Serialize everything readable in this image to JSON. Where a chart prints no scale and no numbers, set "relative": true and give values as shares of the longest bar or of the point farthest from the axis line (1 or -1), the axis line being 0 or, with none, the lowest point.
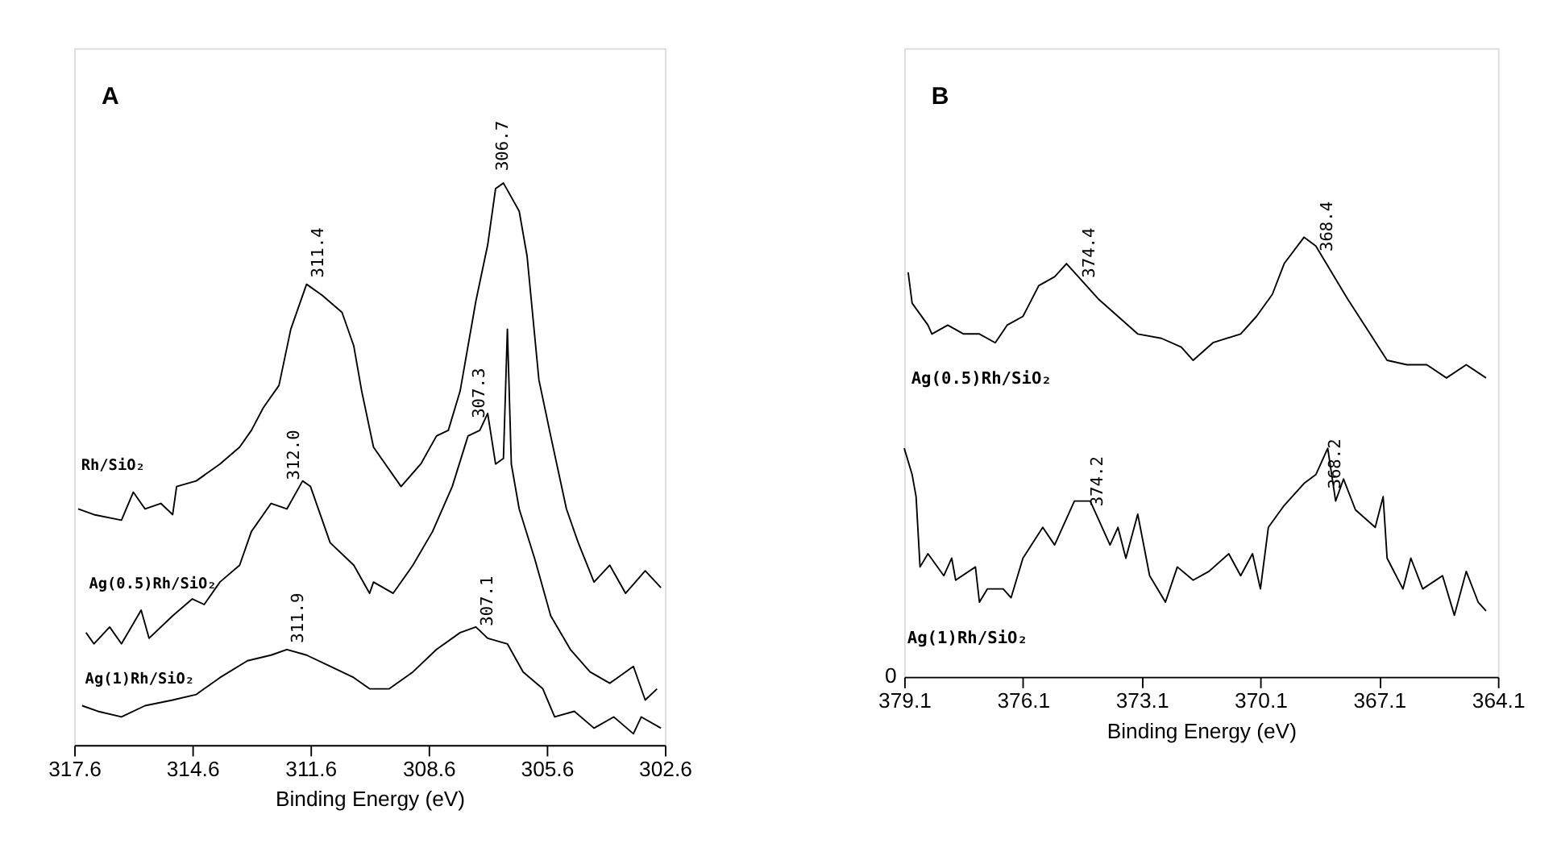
{
  "chart_data": [
    {
      "type": "line",
      "title": "A",
      "xlabel": "Binding Energy (eV)",
      "relative": true,
      "xlim": [
        317.6,
        302.6
      ],
      "xticks": [
        317.6,
        314.6,
        311.6,
        308.6,
        305.6,
        302.6
      ],
      "series": [
        {
          "name": "Rh/SiO₂",
          "color": "#000000",
          "x": [
            317.5,
            317.1,
            316.4,
            316.1,
            315.8,
            315.4,
            315.1,
            315.0,
            314.5,
            313.9,
            313.4,
            313.1,
            312.8,
            312.4,
            312.1,
            311.7,
            311.3,
            310.8,
            310.5,
            310.3,
            310.0,
            309.8,
            309.3,
            308.8,
            308.4,
            308.1,
            307.8,
            307.4,
            307.1,
            306.9,
            306.7,
            306.3,
            306.1,
            305.8,
            305.5,
            305.1,
            304.8,
            304.4,
            304.0,
            303.6,
            303.1,
            302.7
          ],
          "values": [
            0.42,
            0.41,
            0.4,
            0.45,
            0.42,
            0.43,
            0.41,
            0.46,
            0.47,
            0.5,
            0.53,
            0.56,
            0.6,
            0.64,
            0.74,
            0.82,
            0.8,
            0.77,
            0.71,
            0.63,
            0.53,
            0.51,
            0.46,
            0.5,
            0.55,
            0.56,
            0.63,
            0.79,
            0.89,
            0.99,
            1.0,
            0.95,
            0.87,
            0.65,
            0.55,
            0.42,
            0.36,
            0.29,
            0.32,
            0.27,
            0.31,
            0.28
          ]
        },
        {
          "name": "Ag(0.5)Rh/SiO₂",
          "color": "#000000",
          "x": [
            317.3,
            317.1,
            316.7,
            316.4,
            315.9,
            315.7,
            315.1,
            314.6,
            314.3,
            313.9,
            313.4,
            313.1,
            312.6,
            312.2,
            311.8,
            311.6,
            311.1,
            310.5,
            310.1,
            310.0,
            309.5,
            309.0,
            308.5,
            308.0,
            307.6,
            307.3,
            307.1,
            306.9,
            306.7,
            306.6,
            306.5,
            306.3,
            305.9,
            305.5,
            305.0,
            304.5,
            304.0,
            303.4,
            303.1,
            302.8
          ],
          "values": [
            0.2,
            0.18,
            0.21,
            0.18,
            0.24,
            0.19,
            0.23,
            0.26,
            0.25,
            0.29,
            0.32,
            0.38,
            0.43,
            0.42,
            0.47,
            0.46,
            0.36,
            0.32,
            0.27,
            0.29,
            0.27,
            0.32,
            0.38,
            0.46,
            0.55,
            0.56,
            0.59,
            0.5,
            0.51,
            0.74,
            0.5,
            0.42,
            0.33,
            0.23,
            0.17,
            0.13,
            0.11,
            0.14,
            0.08,
            0.1
          ]
        },
        {
          "name": "Ag(1)Rh/SiO₂",
          "color": "#000000",
          "x": [
            317.4,
            317.0,
            316.4,
            315.8,
            315.1,
            314.5,
            313.9,
            313.2,
            312.6,
            312.2,
            311.7,
            311.1,
            310.5,
            310.1,
            309.6,
            309.0,
            308.4,
            307.8,
            307.4,
            307.1,
            306.6,
            306.2,
            305.7,
            305.4,
            304.9,
            304.4,
            303.9,
            303.4,
            303.2,
            302.7
          ],
          "values": [
            0.07,
            0.06,
            0.05,
            0.07,
            0.08,
            0.09,
            0.12,
            0.15,
            0.16,
            0.17,
            0.16,
            0.14,
            0.12,
            0.1,
            0.1,
            0.13,
            0.17,
            0.2,
            0.21,
            0.19,
            0.18,
            0.13,
            0.1,
            0.05,
            0.06,
            0.03,
            0.05,
            0.02,
            0.05,
            0.03
          ]
        }
      ],
      "annotations": [
        {
          "text": "311.4",
          "x": 311.4,
          "y": 0.81
        },
        {
          "text": "306.7",
          "x": 306.7,
          "y": 1.0
        },
        {
          "text": "312.0",
          "x": 312.0,
          "y": 0.45
        },
        {
          "text": "307.3",
          "x": 307.3,
          "y": 0.56
        },
        {
          "text": "311.9",
          "x": 311.9,
          "y": 0.16
        },
        {
          "text": "307.1",
          "x": 307.1,
          "y": 0.19
        }
      ]
    },
    {
      "type": "line",
      "title": "B",
      "xlabel": "Binding Energy (eV)",
      "relative": true,
      "xlim": [
        379.1,
        364.1
      ],
      "xticks": [
        379.1,
        376.1,
        373.1,
        370.1,
        367.1,
        364.1
      ],
      "series": [
        {
          "name": "Ag(0.5)Rh/SiO₂",
          "color": "#000000",
          "x": [
            379.0,
            378.9,
            378.5,
            378.4,
            378.0,
            377.6,
            377.2,
            376.8,
            376.5,
            376.1,
            375.7,
            375.3,
            375.0,
            374.7,
            374.2,
            373.7,
            373.2,
            372.6,
            372.1,
            371.8,
            371.3,
            370.6,
            370.2,
            369.8,
            369.5,
            369.0,
            368.7,
            368.3,
            367.9,
            367.4,
            366.9,
            366.4,
            365.9,
            365.4,
            364.9,
            364.4
          ],
          "values": [
            0.92,
            0.85,
            0.8,
            0.78,
            0.8,
            0.78,
            0.78,
            0.76,
            0.8,
            0.82,
            0.89,
            0.91,
            0.94,
            0.91,
            0.86,
            0.82,
            0.78,
            0.77,
            0.75,
            0.72,
            0.76,
            0.78,
            0.82,
            0.87,
            0.94,
            1.0,
            0.98,
            0.92,
            0.86,
            0.79,
            0.72,
            0.71,
            0.71,
            0.68,
            0.71,
            0.68
          ]
        },
        {
          "name": "Ag(1)Rh/SiO₂",
          "color": "#000000",
          "x": [
            379.1,
            378.9,
            378.8,
            378.7,
            378.5,
            378.1,
            377.9,
            377.8,
            377.3,
            377.2,
            377.0,
            376.6,
            376.4,
            376.1,
            375.6,
            375.3,
            374.8,
            374.4,
            373.9,
            373.7,
            373.5,
            373.2,
            372.9,
            372.5,
            372.2,
            371.8,
            371.4,
            370.9,
            370.6,
            370.3,
            370.1,
            369.9,
            369.5,
            369.0,
            368.7,
            368.4,
            368.2,
            368.0,
            367.7,
            367.2,
            367.0,
            366.9,
            366.5,
            366.3,
            366.0,
            365.5,
            365.2,
            364.9,
            364.6,
            364.4
          ],
          "values": [
            0.52,
            0.46,
            0.41,
            0.25,
            0.28,
            0.23,
            0.27,
            0.22,
            0.25,
            0.17,
            0.2,
            0.2,
            0.18,
            0.27,
            0.34,
            0.3,
            0.4,
            0.4,
            0.3,
            0.34,
            0.27,
            0.37,
            0.23,
            0.17,
            0.25,
            0.22,
            0.24,
            0.28,
            0.23,
            0.28,
            0.2,
            0.34,
            0.39,
            0.44,
            0.46,
            0.52,
            0.4,
            0.45,
            0.38,
            0.34,
            0.41,
            0.27,
            0.2,
            0.27,
            0.2,
            0.23,
            0.14,
            0.24,
            0.17,
            0.15
          ]
        }
      ],
      "annotations": [
        {
          "text": "374.4",
          "x": 374.4,
          "y": 0.88
        },
        {
          "text": "368.4",
          "x": 368.4,
          "y": 0.94
        },
        {
          "text": "374.2",
          "x": 374.2,
          "y": 0.36
        },
        {
          "text": "368.2",
          "x": 368.2,
          "y": 0.4
        },
        "0"
      ]
    }
  ]
}
